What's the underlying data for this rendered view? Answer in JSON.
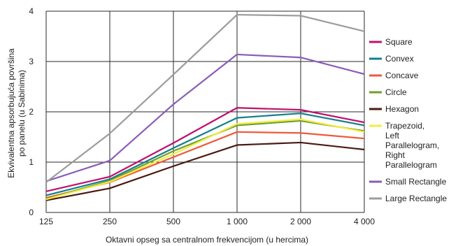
{
  "chart_data": {
    "type": "line",
    "title": "",
    "xlabel": "Oktavni opseg sa centralnom frekvencijom (u hercima)",
    "ylabel": "Ekvivalentna apsorbujuća površina po panelu (u Sabinima)",
    "categories": [
      "125",
      "250",
      "500",
      "1 000",
      "2 000",
      "4 000"
    ],
    "y_ticks": [
      "0",
      "1",
      "2",
      "3",
      "4"
    ],
    "ylim": [
      0,
      4
    ],
    "grid": true,
    "legend_position": "right",
    "series": [
      {
        "name": "Square",
        "color": "#c0106e",
        "values": [
          0.42,
          0.71,
          1.38,
          2.08,
          2.04,
          1.79
        ]
      },
      {
        "name": "Convex",
        "color": "#137f8c",
        "values": [
          0.34,
          0.66,
          1.28,
          1.88,
          1.97,
          1.73
        ]
      },
      {
        "name": "Concave",
        "color": "#ee5a3c",
        "values": [
          0.29,
          0.6,
          1.1,
          1.6,
          1.58,
          1.47
        ]
      },
      {
        "name": "Circle",
        "color": "#6f9e2f",
        "values": [
          0.27,
          0.63,
          1.22,
          1.73,
          1.82,
          1.62
        ]
      },
      {
        "name": "Hexagon",
        "color": "#4a1a12",
        "values": [
          0.24,
          0.48,
          0.92,
          1.34,
          1.39,
          1.25
        ]
      },
      {
        "name": "Trapezoid,\nLeft\nParallelogram,\nRight\nParallelogram",
        "color": "#f2ec40",
        "values": [
          0.26,
          0.61,
          1.16,
          1.76,
          1.85,
          1.6
        ]
      },
      {
        "name": "Small Rectangle",
        "color": "#8a5cb8",
        "values": [
          0.62,
          1.03,
          2.15,
          3.14,
          3.08,
          2.75
        ]
      },
      {
        "name": "Large Rectangle",
        "color": "#9c9c9c",
        "values": [
          0.6,
          1.57,
          2.74,
          3.93,
          3.91,
          3.6
        ]
      }
    ]
  }
}
